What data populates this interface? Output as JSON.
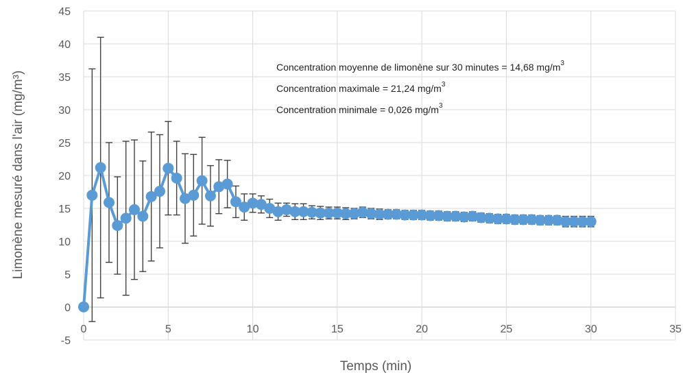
{
  "chart_data": {
    "type": "line",
    "xlabel": "Temps (min)",
    "ylabel": "Limonène mesuré dans l'air (mg/m³)",
    "xlim": [
      0,
      35
    ],
    "ylim": [
      -5,
      45
    ],
    "xticks": [
      0,
      5,
      10,
      15,
      20,
      25,
      30,
      35
    ],
    "yticks": [
      -5,
      0,
      5,
      10,
      15,
      20,
      25,
      30,
      35,
      40,
      45
    ],
    "grid": true,
    "line_color": "#5b9bd5",
    "errorbar_color": "#404040",
    "annotations": [
      {
        "text": "Concentration moyenne de limonène sur 30 minutes = 14,68 mg/m",
        "sup": "3"
      },
      {
        "text": "Concentration maximale = 21,24 mg/m",
        "sup": "3"
      },
      {
        "text": "Concentration minimale = 0,026 mg/m",
        "sup": "3"
      }
    ],
    "series": [
      {
        "x": [
          0,
          0.5,
          1,
          1.5,
          2,
          2.5,
          3,
          3.5,
          4,
          4.5,
          5,
          5.5,
          6,
          6.5,
          7,
          7.5,
          8,
          8.5,
          9,
          9.5,
          10,
          10.5,
          11,
          11.5,
          12,
          12.5,
          13,
          13.5,
          14,
          14.5,
          15,
          15.5,
          16,
          16.5,
          17,
          17.5,
          18,
          18.5,
          19,
          19.5,
          20,
          20.5,
          21,
          21.5,
          22,
          22.5,
          23,
          23.5,
          24,
          24.5,
          25,
          25.5,
          26,
          26.5,
          27,
          27.5,
          28,
          28.5,
          29,
          29.5,
          30
        ],
        "y": [
          0.03,
          17,
          21.2,
          15.9,
          12.4,
          13.5,
          14.8,
          13.8,
          16.8,
          17.6,
          21.1,
          19.6,
          16.5,
          17.0,
          19.2,
          16.9,
          18.3,
          18.7,
          16.0,
          15.2,
          15.8,
          15.6,
          15.0,
          14.5,
          14.8,
          14.5,
          14.5,
          14.4,
          14.3,
          14.3,
          14.3,
          14.2,
          14.2,
          14.4,
          14.2,
          14.1,
          14.1,
          14.1,
          14.0,
          14.0,
          14.0,
          13.9,
          13.9,
          13.8,
          13.8,
          13.7,
          13.8,
          13.6,
          13.5,
          13.4,
          13.4,
          13.3,
          13.3,
          13.3,
          13.2,
          13.2,
          13.2,
          13.0,
          13.0,
          13.0,
          13.0
        ],
        "err": [
          0.03,
          19.2,
          19.8,
          9.1,
          7.4,
          11.7,
          10.6,
          8.4,
          9.8,
          8.6,
          7.1,
          5.6,
          6.8,
          6.2,
          6.6,
          4.6,
          4.1,
          3.6,
          2.4,
          2.0,
          1.4,
          1.3,
          1.4,
          1.3,
          1.0,
          1.2,
          1.2,
          1.0,
          1.0,
          0.9,
          0.9,
          0.9,
          0.8,
          0.8,
          0.8,
          0.8,
          0.7,
          0.7,
          0.7,
          0.7,
          0.7,
          0.7,
          0.7,
          0.7,
          0.7,
          0.7,
          0.7,
          0.7,
          0.7,
          0.7,
          0.7,
          0.7,
          0.7,
          0.7,
          0.7,
          0.7,
          0.7,
          0.8,
          0.8,
          0.8,
          0.8
        ]
      }
    ]
  }
}
